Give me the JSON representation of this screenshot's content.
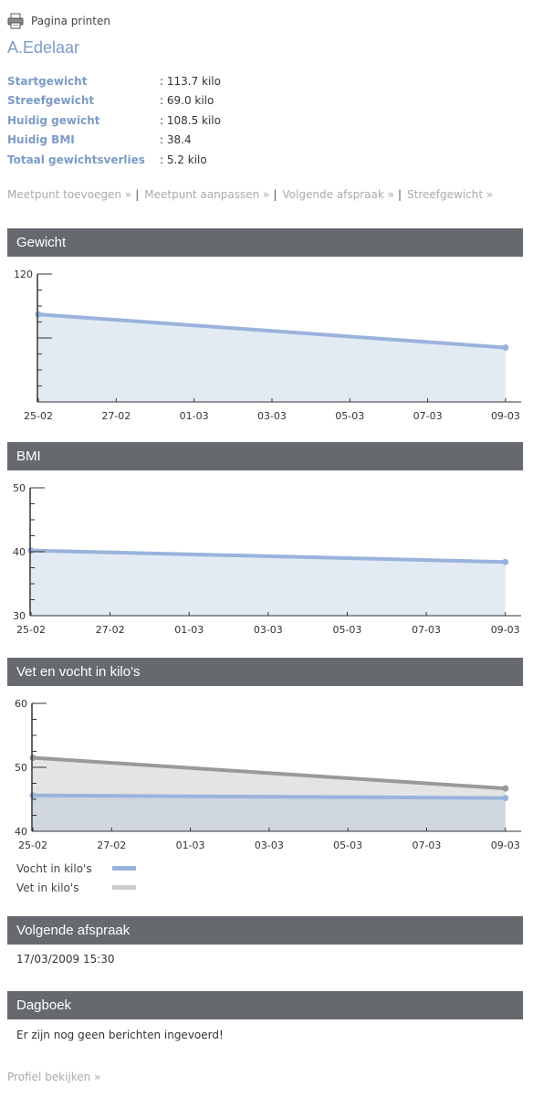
{
  "print": {
    "icon": "printer-icon",
    "label": "Pagina printen"
  },
  "patient": {
    "name": "A.Edelaar"
  },
  "stats": [
    {
      "label": "Startgewicht",
      "value": ": 113.7 kilo"
    },
    {
      "label": "Streefgewicht",
      "value": ": 69.0 kilo"
    },
    {
      "label": "Huidig gewicht",
      "value": ": 108.5 kilo"
    },
    {
      "label": "Huidig BMI",
      "value": ": 38.4"
    },
    {
      "label": "Totaal gewichtsverlies",
      "value": ": 5.2 kilo"
    }
  ],
  "links": [
    {
      "label": "Meetpunt toevoegen »"
    },
    {
      "label": "Meetpunt aanpassen »"
    },
    {
      "label": "Volgende afspraak »"
    },
    {
      "label": "Streefgewicht »"
    }
  ],
  "sections": {
    "gewicht": "Gewicht",
    "bmi": "BMI",
    "vet_vocht": "Vet en vocht in kilo's",
    "afspraak": "Volgende afspraak",
    "dagboek": "Dagboek"
  },
  "afspraak": {
    "datetime": "17/03/2009 15:30"
  },
  "dagboek": {
    "message": "Er zijn nog geen berichten ingevoerd!"
  },
  "footer": {
    "profile_link": "Profiel bekijken »"
  },
  "colors": {
    "blue_line": "#9ab3dc",
    "blue_fill": "#e2eaf4",
    "gray_line": "#999999",
    "gray_fill": "#e4e4e4",
    "bar_bg": "#666a6e",
    "accent": "#7c9bc6"
  },
  "chart_data": [
    {
      "type": "area",
      "title": "Gewicht",
      "x_tick_labels": [
        "25-02",
        "27-02",
        "01-03",
        "03-03",
        "05-03",
        "07-03",
        "09-03"
      ],
      "y_tick_labels": [
        "120"
      ],
      "ylim": [
        100,
        120
      ],
      "series": [
        {
          "x": [
            "25-02",
            "09-03"
          ],
          "values": [
            113.7,
            108.5
          ],
          "color": "#9ab3dc"
        }
      ]
    },
    {
      "type": "area",
      "title": "BMI",
      "x_tick_labels": [
        "25-02",
        "27-02",
        "01-03",
        "03-03",
        "05-03",
        "07-03",
        "09-03"
      ],
      "y_tick_labels": [
        "30",
        "40",
        "50"
      ],
      "ylim": [
        30,
        50
      ],
      "series": [
        {
          "x": [
            "25-02",
            "09-03"
          ],
          "values": [
            40.2,
            38.4
          ],
          "color": "#9ab3dc"
        }
      ]
    },
    {
      "type": "area",
      "title": "Vet en vocht in kilo's",
      "x_tick_labels": [
        "25-02",
        "27-02",
        "01-03",
        "03-03",
        "05-03",
        "07-03",
        "09-03"
      ],
      "y_tick_labels": [
        "40",
        "50",
        "60"
      ],
      "ylim": [
        40,
        60
      ],
      "series": [
        {
          "name": "Vet in kilo's",
          "x": [
            "25-02",
            "09-03"
          ],
          "values": [
            51.5,
            46.7
          ],
          "color": "#999999"
        },
        {
          "name": "Vocht in kilo's",
          "x": [
            "25-02",
            "09-03"
          ],
          "values": [
            45.6,
            45.2
          ],
          "color": "#9ab3dc"
        }
      ],
      "legend": [
        {
          "name": "Vocht in kilo's",
          "color": "#9ab3dc"
        },
        {
          "name": "Vet in kilo's",
          "color": "#cccccc"
        }
      ]
    }
  ]
}
